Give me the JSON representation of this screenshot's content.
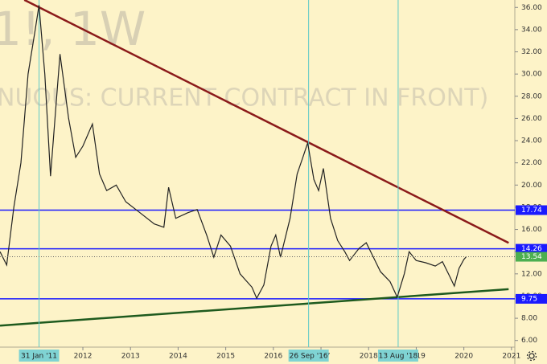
{
  "chart_data": {
    "type": "line",
    "watermark": "1!, 1W",
    "watermark_subtitle": "NUOUS: CURRENT CONTRACT IN FRONT)",
    "x": [
      2010.26,
      2010.4,
      2010.55,
      2010.7,
      2010.85,
      2011.0,
      2011.08,
      2011.2,
      2011.32,
      2011.45,
      2011.52,
      2011.7,
      2011.85,
      2012.0,
      2012.2,
      2012.35,
      2012.5,
      2012.7,
      2012.9,
      2013.2,
      2013.5,
      2013.7,
      2013.8,
      2013.95,
      2014.2,
      2014.4,
      2014.6,
      2014.75,
      2014.9,
      2015.1,
      2015.3,
      2015.55,
      2015.65,
      2015.8,
      2015.95,
      2016.05,
      2016.15,
      2016.35,
      2016.5,
      2016.62,
      2016.72,
      2016.85,
      2016.95,
      2017.05,
      2017.2,
      2017.35,
      2017.5,
      2017.6,
      2017.8,
      2017.95,
      2018.1,
      2018.25,
      2018.45,
      2018.6,
      2018.75,
      2018.85,
      2019.0,
      2019.2,
      2019.4,
      2019.55,
      2019.7,
      2019.8,
      2019.9,
      2020.0,
      2020.05
    ],
    "values": [
      14,
      12.8,
      18,
      22,
      30,
      34,
      36.2,
      30,
      20.8,
      28,
      31.8,
      26,
      22.5,
      23.5,
      25.5,
      21,
      19.5,
      20,
      18.5,
      17.5,
      16.5,
      16.2,
      19.8,
      17,
      17.5,
      17.8,
      15.5,
      13.5,
      15.5,
      14.5,
      12,
      10.8,
      9.8,
      11,
      14.5,
      15.5,
      13.5,
      17,
      21,
      22.5,
      23.8,
      20.5,
      19.5,
      21.5,
      17,
      15,
      14,
      13.2,
      14.3,
      14.8,
      13.5,
      12.2,
      11.3,
      9.9,
      12,
      14,
      13.2,
      13,
      12.7,
      13.1,
      11.8,
      10.9,
      12.5,
      13.3,
      13.54
    ],
    "color": "#222222",
    "xlim": [
      2010.26,
      2021.07
    ],
    "xticks": [
      2012,
      2013,
      2014,
      2015,
      2016,
      2017,
      2018,
      2019,
      2020,
      2021
    ],
    "ylim": [
      5.4,
      36.67
    ],
    "yticks": [
      {
        "value": 6,
        "label": "6.00"
      },
      {
        "value": 8,
        "label": "8.00"
      },
      {
        "value": 10,
        "label": "10.00"
      },
      {
        "value": 12,
        "label": "12.00"
      },
      {
        "value": 14,
        "label": "14.00"
      },
      {
        "value": 16,
        "label": "16.00"
      },
      {
        "value": 18,
        "label": "18.00"
      },
      {
        "value": 20,
        "label": "20.00"
      },
      {
        "value": 22,
        "label": "22.00"
      },
      {
        "value": 24,
        "label": "24.00"
      },
      {
        "value": 26,
        "label": "26.00"
      },
      {
        "value": 28,
        "label": "28.00"
      },
      {
        "value": 30,
        "label": "30.00"
      },
      {
        "value": 32,
        "label": "32.00"
      },
      {
        "value": 34,
        "label": "34.00"
      },
      {
        "value": 36,
        "label": "36.00"
      }
    ],
    "levels": [
      {
        "value": 17.74,
        "color": "#1a1aff"
      },
      {
        "value": 14.26,
        "color": "#1a1aff"
      },
      {
        "value": 9.75,
        "color": "#1a1aff"
      }
    ],
    "last_price": {
      "value": 13.54,
      "color": "#4caf50"
    },
    "markers": [
      {
        "x": 2011.08,
        "label": "31 Jan '11"
      },
      {
        "x": 2016.74,
        "label": "26 Sep '16"
      },
      {
        "x": 2018.62,
        "label": "13 Aug '18"
      }
    ],
    "trend_lines": [
      {
        "color": "#8b1a1a",
        "points": [
          [
            2010.77,
            36.68
          ],
          [
            2020.94,
            14.79
          ]
        ]
      },
      {
        "color": "#1e5a1e",
        "points": [
          [
            2010.26,
            7.34
          ],
          [
            2020.94,
            10.62
          ]
        ]
      }
    ]
  }
}
